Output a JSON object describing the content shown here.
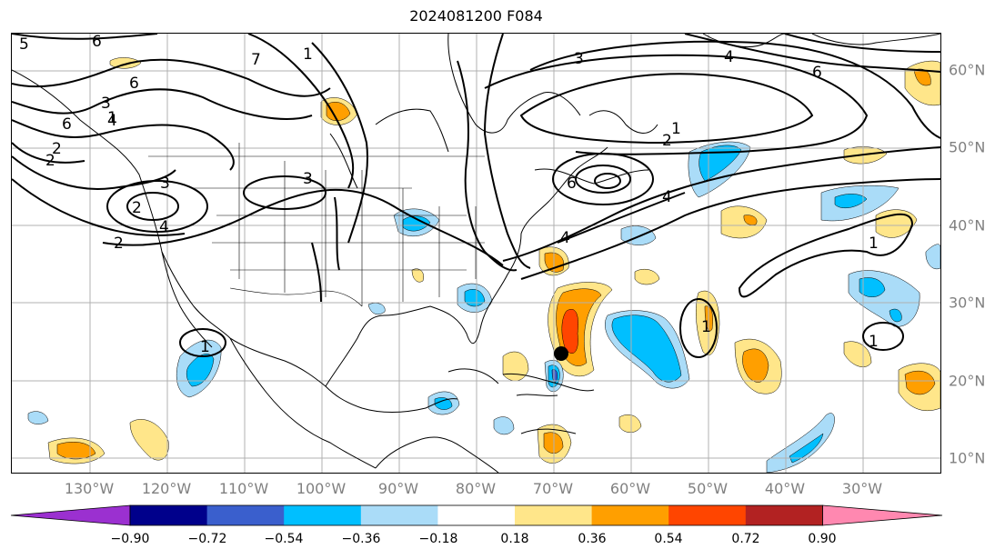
{
  "title": "2024081200 F084",
  "lat_labels": [
    "10°N",
    "20°N",
    "30°N",
    "40°N",
    "50°N",
    "60°N"
  ],
  "lon_labels": [
    "130°W",
    "120°W",
    "110°W",
    "100°W",
    "90°W",
    "80°W",
    "70°W",
    "60°W",
    "50°W",
    "40°W",
    "30°W"
  ],
  "colorbar": {
    "colors": [
      "#9b30d0",
      "#00008b",
      "#3a5fcd",
      "#00bfff",
      "#aadcf8",
      "#ffffff",
      "#ffe68a",
      "#ff9f00",
      "#ff4500",
      "#b22222",
      "#ff88b0"
    ],
    "tick_labels": [
      "−0.90",
      "−0.72",
      "−0.54",
      "−0.36",
      "−0.18",
      "0.18",
      "0.36",
      "0.54",
      "0.72",
      "0.90"
    ]
  },
  "contour_labels": [
    "5",
    "6",
    "7",
    "3",
    "6",
    "1",
    "2",
    "6",
    "4",
    "3",
    "3",
    "2",
    "4",
    "2",
    "1",
    "4",
    "3",
    "6",
    "1",
    "2",
    "6",
    "4",
    "1",
    "1",
    "1",
    "4",
    "2",
    "1"
  ],
  "marker": "storm-center-dot"
}
